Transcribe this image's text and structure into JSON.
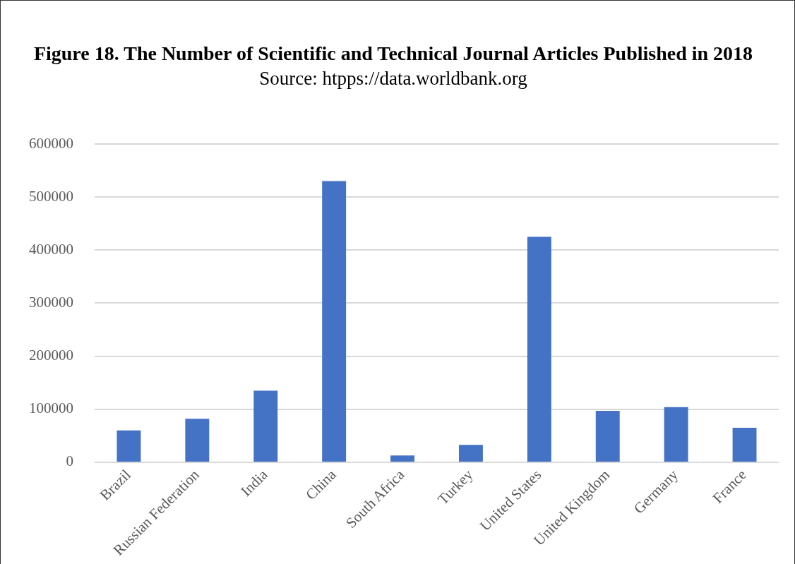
{
  "chart_data": {
    "type": "bar",
    "title": "Figure 18. The Number of Scientific and Technical Journal Articles Published in 2018",
    "subtitle": "Source: htpps://data.worldbank.org",
    "categories": [
      "Brazil",
      "Russian Federation",
      "India",
      "China",
      "South Africa",
      "Turkey",
      "United States",
      "United Kingdom",
      "Germany",
      "France"
    ],
    "values": [
      60000,
      82000,
      135000,
      530000,
      13000,
      33000,
      425000,
      97000,
      104000,
      65000
    ],
    "color": "#4472c4",
    "ylim": [
      0,
      600000
    ],
    "yticks": [
      0,
      100000,
      200000,
      300000,
      400000,
      500000,
      600000
    ],
    "grid": "y",
    "legend": false
  }
}
